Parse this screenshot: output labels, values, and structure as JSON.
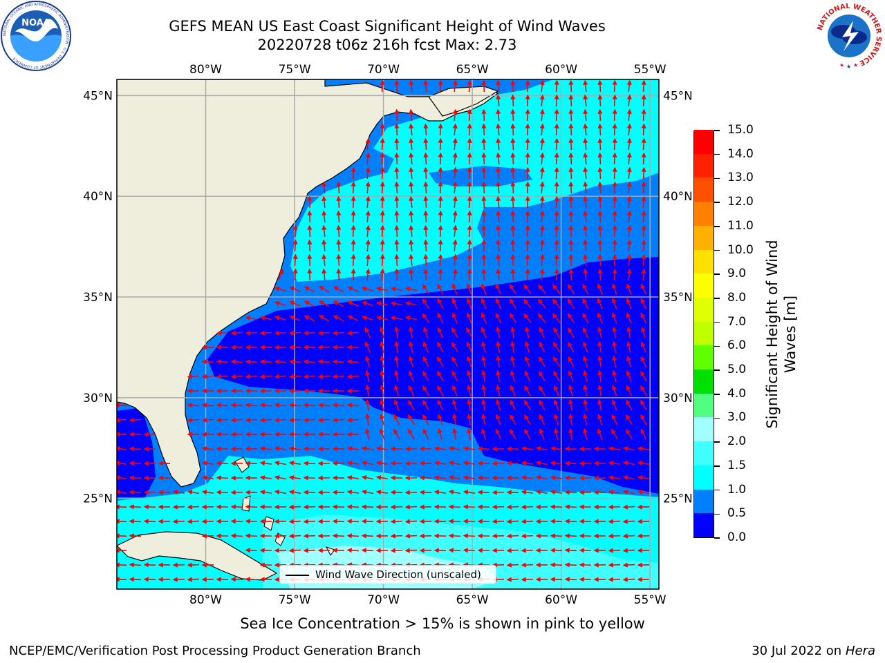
{
  "title": {
    "line1": "GEFS MEAN US East Coast Significant Height of Wind Waves",
    "line2": "20220728 t06z 216h fcst   Max: 2.73"
  },
  "map": {
    "lon_ticks_top": [
      "80°W",
      "75°W",
      "70°W",
      "65°W",
      "60°W",
      "55°W"
    ],
    "lon_ticks_bottom": [
      "80°W",
      "75°W",
      "70°W",
      "65°W",
      "60°W",
      "55°W"
    ],
    "lat_ticks_left": [
      "45°N",
      "40°N",
      "35°N",
      "30°N",
      "25°N"
    ],
    "lat_ticks_right": [
      "45°N",
      "40°N",
      "35°N",
      "30°N",
      "25°N"
    ],
    "extent": {
      "lon_min": -85,
      "lon_max": -54.5,
      "lat_min": 20.5,
      "lat_max": 45.8
    },
    "legend_label": "Wind Wave Direction (unscaled)",
    "land_color": "#efeedd",
    "arrow_color": "#ff0000"
  },
  "colorbar": {
    "label": "Significant Height of Wind Waves [m]",
    "ticks": [
      "0.0",
      "0.5",
      "1.0",
      "1.5",
      "2.0",
      "3.0",
      "4.0",
      "5.0",
      "6.0",
      "7.0",
      "8.0",
      "9.0",
      "10.0",
      "11.0",
      "12.0",
      "13.0",
      "14.0",
      "15.0"
    ],
    "colors": [
      "#0000ff",
      "#0080ff",
      "#00ffff",
      "#40ffff",
      "#a0ffff",
      "#50ff80",
      "#00e000",
      "#60ff00",
      "#c0ff00",
      "#e0ff00",
      "#ffff00",
      "#ffe000",
      "#ffb000",
      "#ff8000",
      "#ff5000",
      "#ff2000",
      "#ff0000"
    ]
  },
  "subtitle": "Sea Ice Concentration > 15% is shown in pink to yellow",
  "footer": {
    "left": "NCEP/EMC/Verification Post Processing Product Generation Branch",
    "right_date": "30 Jul 2022 on ",
    "right_host": "Hera"
  },
  "logos": {
    "noaa_text": "NOAA",
    "noaa_ring": "NATIONAL OCEANIC AND ATMOSPHERIC ADMINISTRATION · U.S. DEPARTMENT OF COMMERCE",
    "nws_ring": "NATIONAL WEATHER SERVICE"
  }
}
